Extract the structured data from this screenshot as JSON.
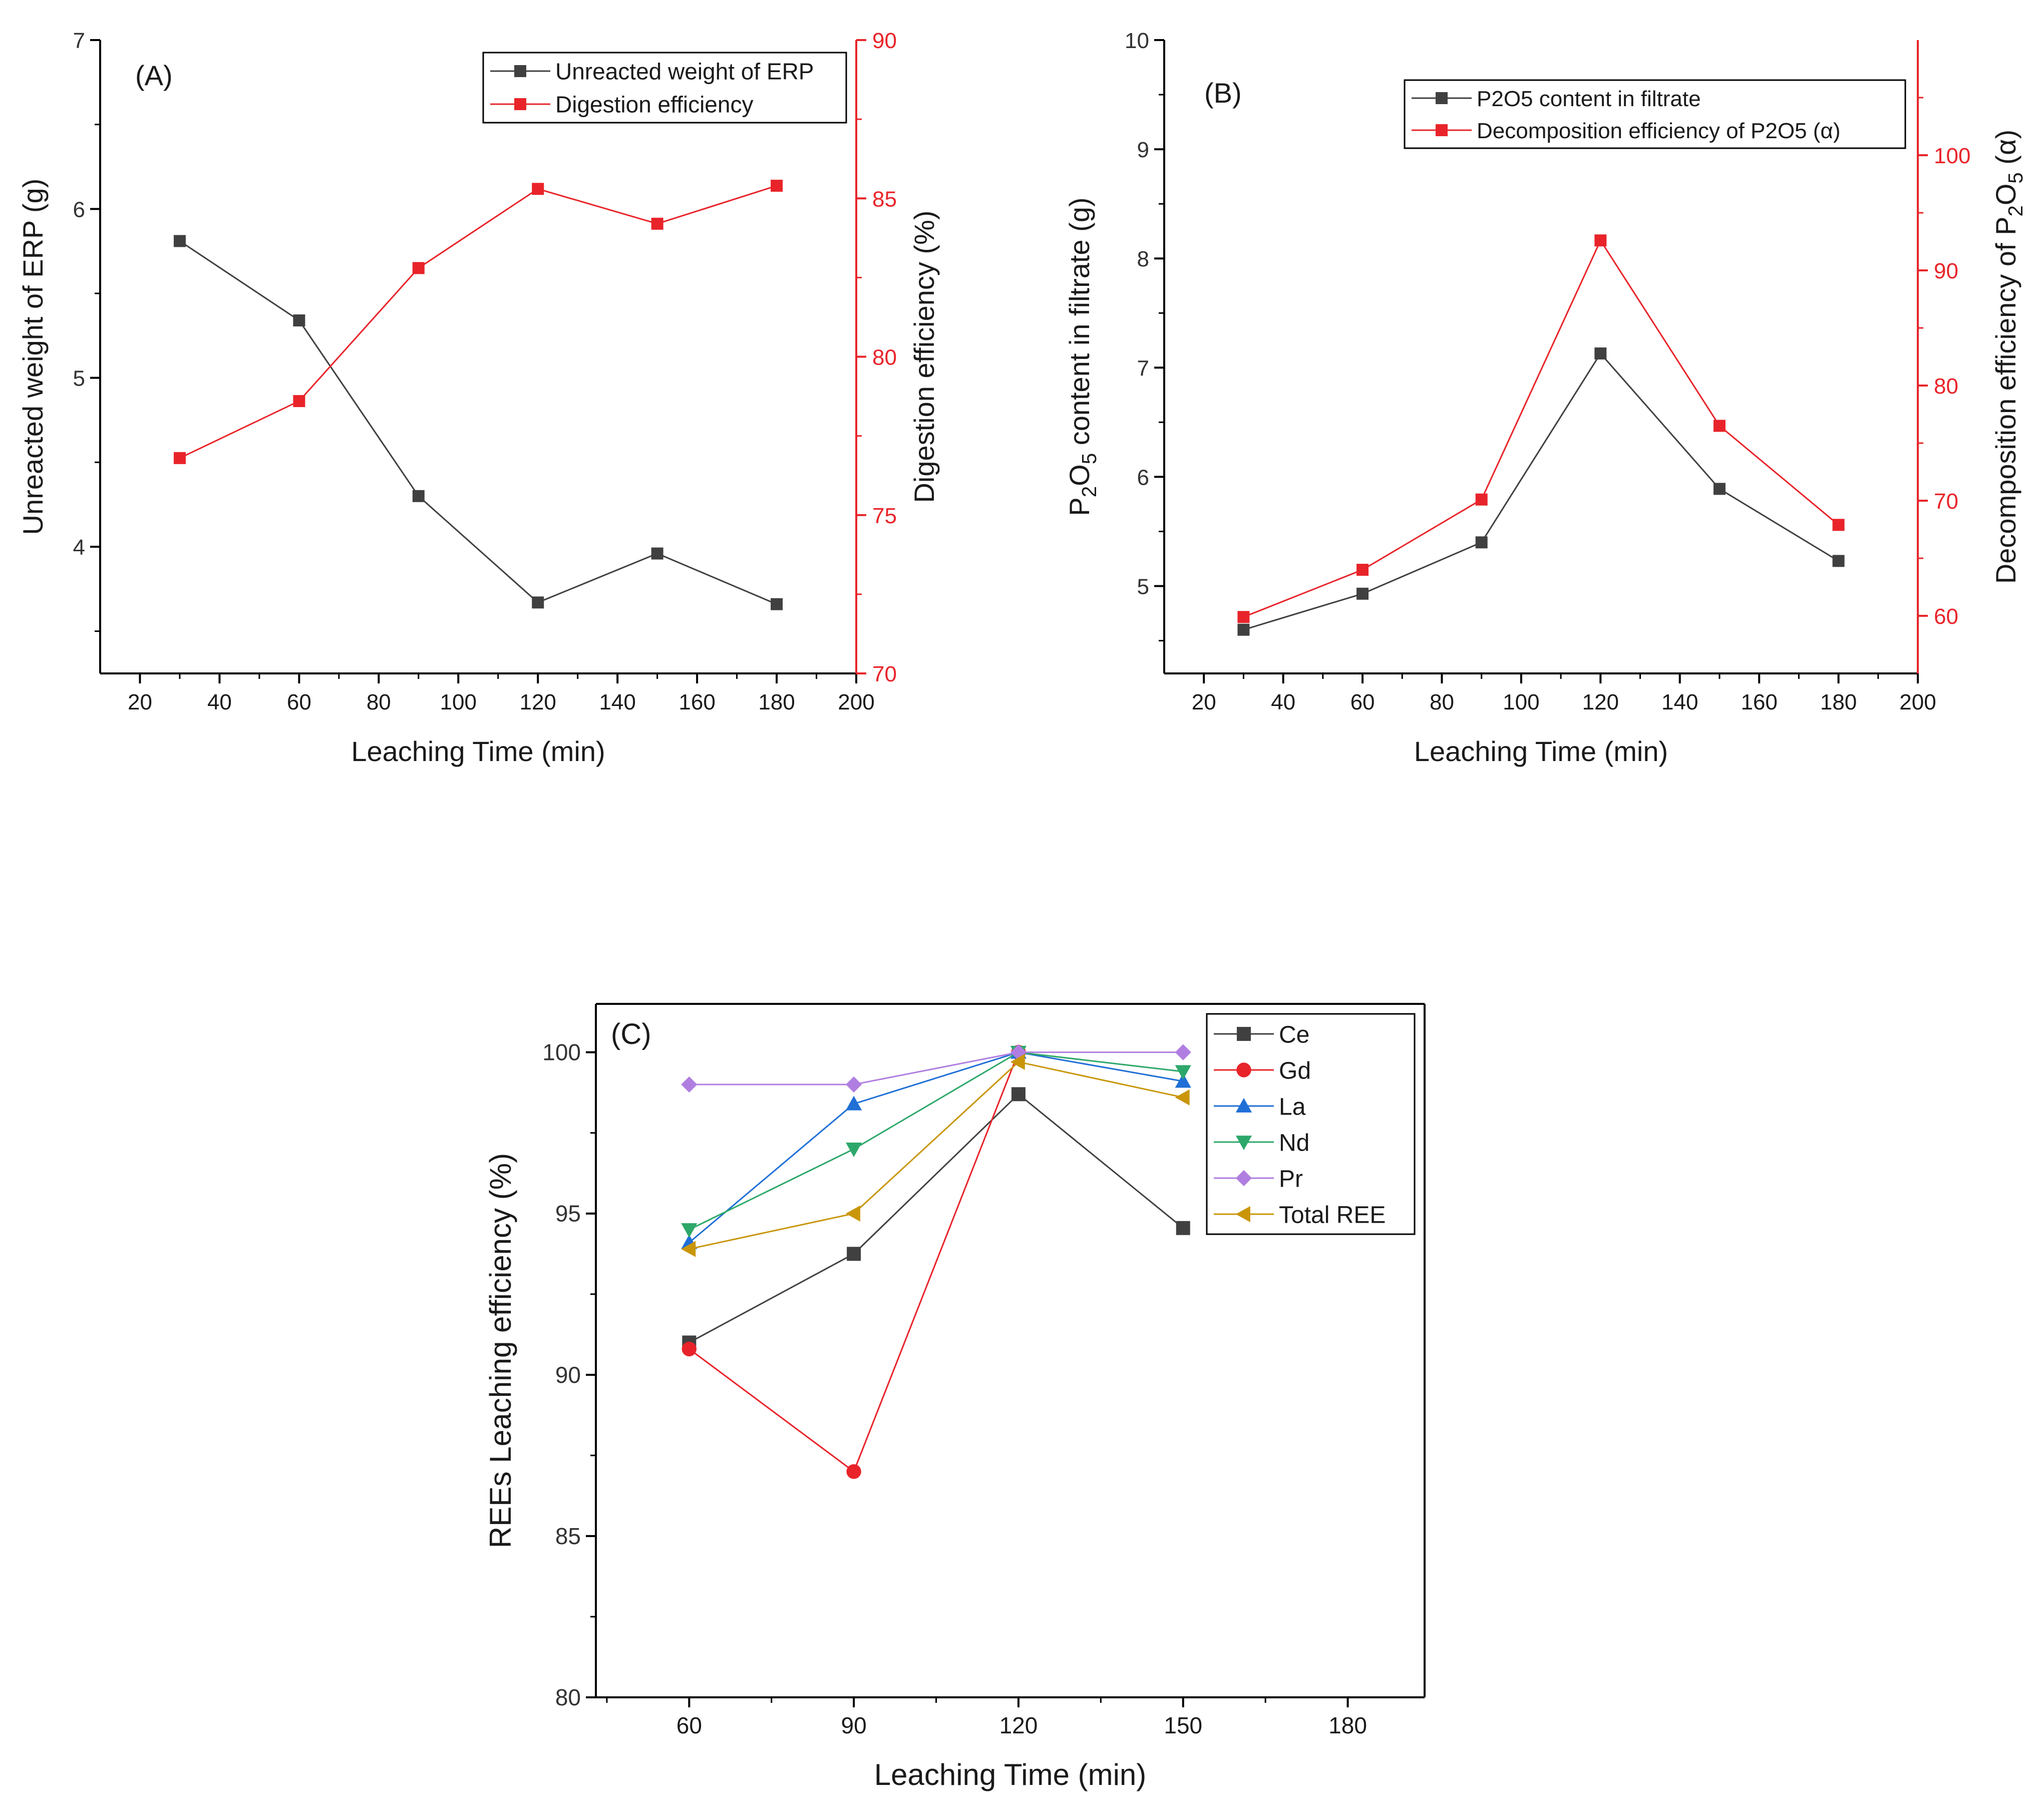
{
  "colors": {
    "black_series": "#404040",
    "red_series": "#e8242a",
    "red_axis": "#e8242a",
    "axis": "#000000",
    "ce": "#404040",
    "gd": "#e8242a",
    "la": "#1f6fd6",
    "nd": "#2ea86a",
    "pr": "#b07ee0",
    "total": "#c9960a"
  },
  "chart_data": [
    {
      "id": "A",
      "type": "line",
      "panel_label": "(A)",
      "xlabel": "Leaching Time (min)",
      "ylabel": "Unreacted weight of ERP (g)",
      "y2label": "Digestion efficiency (%)",
      "xlim": [
        10,
        200
      ],
      "ylim": [
        3.25,
        7
      ],
      "y2lim": [
        70,
        90
      ],
      "x_ticks": [
        20,
        40,
        60,
        80,
        100,
        120,
        140,
        160,
        180,
        200
      ],
      "x_tick_labels": [
        "20",
        "40",
        "60",
        "80",
        "100",
        "120",
        "140",
        "160",
        "180",
        "200"
      ],
      "y_ticks": [
        4,
        5,
        6,
        7
      ],
      "y_tick_labels": [
        "4",
        "5",
        "6",
        "7"
      ],
      "y2_ticks": [
        70,
        75,
        80,
        85,
        90
      ],
      "y2_tick_labels": [
        "70",
        "75",
        "80",
        "85",
        "90"
      ],
      "series": [
        {
          "name": "Unreacted weight of ERP",
          "axis": "left",
          "marker": "square",
          "color": "#404040",
          "x": [
            30,
            60,
            90,
            120,
            150,
            180
          ],
          "values": [
            5.81,
            5.34,
            4.3,
            3.67,
            3.96,
            3.66
          ]
        },
        {
          "name": "Digestion efficiency",
          "axis": "right",
          "marker": "square",
          "color": "#e8242a",
          "x": [
            30,
            60,
            90,
            120,
            150,
            180
          ],
          "values": [
            76.8,
            78.6,
            82.8,
            85.3,
            84.2,
            85.4
          ]
        }
      ],
      "legend_position": "top-right"
    },
    {
      "id": "B",
      "type": "line",
      "panel_label": "(B)",
      "xlabel": "Leaching Time (min)",
      "ylabel_parts": [
        "P",
        "2",
        "O",
        "5",
        " content in filtrate (g)"
      ],
      "y2label_parts": [
        "Decomposition efficiency of P",
        "2",
        "O",
        "5",
        " (α)"
      ],
      "xlim": [
        10,
        200
      ],
      "ylim": [
        4.2,
        10
      ],
      "y2lim": [
        55,
        110
      ],
      "x_ticks": [
        20,
        40,
        60,
        80,
        100,
        120,
        140,
        160,
        180,
        200
      ],
      "x_tick_labels": [
        "20",
        "40",
        "60",
        "80",
        "100",
        "120",
        "140",
        "160",
        "180",
        "200"
      ],
      "y_ticks": [
        5,
        6,
        7,
        8,
        9,
        10
      ],
      "y_tick_labels": [
        "5",
        "6",
        "7",
        "8",
        "9",
        "10"
      ],
      "y2_ticks": [
        60,
        70,
        80,
        90,
        100
      ],
      "y2_tick_labels": [
        "60",
        "70",
        "80",
        "90",
        "100"
      ],
      "series": [
        {
          "name": "P2O5 content in filtrate",
          "axis": "left",
          "marker": "square",
          "color": "#404040",
          "x": [
            30,
            60,
            90,
            120,
            150,
            180
          ],
          "values": [
            4.6,
            4.93,
            5.4,
            7.13,
            5.89,
            5.23
          ]
        },
        {
          "name": "Decomposition efficiency of P2O5 (α)",
          "axis": "right",
          "marker": "square",
          "color": "#e8242a",
          "x": [
            30,
            60,
            90,
            120,
            150,
            180
          ],
          "values": [
            59.9,
            64.0,
            70.1,
            92.6,
            76.5,
            67.9
          ]
        }
      ],
      "legend_position": "top-right"
    },
    {
      "id": "C",
      "type": "line",
      "panel_label": "(C)",
      "xlabel": "Leaching Time (min)",
      "ylabel": "REEs Leaching efficiency (%)",
      "xlim": [
        43,
        194
      ],
      "ylim": [
        80,
        101.5
      ],
      "x_ticks": [
        60,
        90,
        120,
        150,
        180
      ],
      "x_tick_labels": [
        "60",
        "90",
        "120",
        "150",
        "180"
      ],
      "y_ticks": [
        80,
        85,
        90,
        95,
        100
      ],
      "y_tick_labels": [
        "80",
        "85",
        "90",
        "95",
        "100"
      ],
      "series": [
        {
          "name": "Ce",
          "marker": "square",
          "color": "#404040",
          "x": [
            60,
            90,
            120,
            150
          ],
          "values": [
            91.0,
            93.75,
            98.7,
            94.55
          ]
        },
        {
          "name": "Gd",
          "marker": "circle",
          "color": "#e8242a",
          "x": [
            60,
            90,
            120
          ],
          "values": [
            90.8,
            87.0,
            100.0
          ]
        },
        {
          "name": "La",
          "marker": "triangle-up",
          "color": "#1f6fd6",
          "x": [
            60,
            90,
            120,
            150
          ],
          "values": [
            94.1,
            98.4,
            100.0,
            99.1
          ]
        },
        {
          "name": "Nd",
          "marker": "triangle-down",
          "color": "#2ea86a",
          "x": [
            60,
            90,
            120,
            150
          ],
          "values": [
            94.5,
            97.0,
            100.0,
            99.4
          ]
        },
        {
          "name": "Pr",
          "marker": "diamond",
          "color": "#b07ee0",
          "x": [
            60,
            90,
            120,
            150
          ],
          "values": [
            99.0,
            99.0,
            100.0,
            100.0
          ]
        },
        {
          "name": "Total REE",
          "marker": "triangle-left",
          "color": "#c9960a",
          "x": [
            60,
            90,
            120,
            150
          ],
          "values": [
            93.9,
            95.0,
            99.7,
            98.6
          ]
        }
      ],
      "legend_position": "top-right"
    }
  ]
}
